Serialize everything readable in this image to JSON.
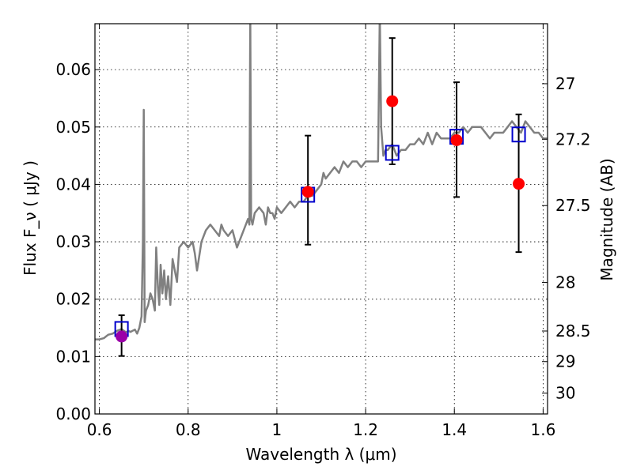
{
  "chart_data": {
    "type": "scatter",
    "title": "",
    "xlabel": "Wavelength  λ (μm)",
    "ylabel": "Flux  F_ν  ( μJy )",
    "ylabel_right": "Magnitude (AB)",
    "xlim": [
      0.59,
      1.61
    ],
    "ylim": [
      0.0,
      0.068
    ],
    "x_ticks": [
      0.6,
      0.8,
      1.0,
      1.2,
      1.4,
      1.6
    ],
    "x_tick_labels": [
      "0.6",
      "0.8",
      "1",
      "1.2",
      "1.4",
      "1.6"
    ],
    "y_ticks": [
      0.0,
      0.01,
      0.02,
      0.03,
      0.04,
      0.05,
      0.06
    ],
    "y_tick_labels": [
      "0.00",
      "0.01",
      "0.02",
      "0.03",
      "0.04",
      "0.05",
      "0.06"
    ],
    "right_ticks": [
      27,
      27.2,
      27.5,
      28,
      28.5,
      29,
      30
    ],
    "right_tick_labels": [
      "27",
      "27.2",
      "27.5",
      "28",
      "28.5",
      "29",
      "30"
    ],
    "grid": true,
    "colors": {
      "sed": "#808080",
      "observed": "#ff0000",
      "model": "#0000cc",
      "overlap": "#9b00a8",
      "errorbar": "#000000"
    },
    "series": [
      {
        "kind": "sed_line",
        "x": [
          0.59,
          0.6,
          0.61,
          0.615,
          0.62,
          0.63,
          0.64,
          0.65,
          0.66,
          0.665,
          0.67,
          0.68,
          0.685,
          0.69,
          0.695,
          0.698,
          0.7,
          0.702,
          0.705,
          0.71,
          0.715,
          0.72,
          0.725,
          0.728,
          0.732,
          0.735,
          0.738,
          0.742,
          0.746,
          0.75,
          0.755,
          0.76,
          0.765,
          0.775,
          0.78,
          0.79,
          0.8,
          0.81,
          0.815,
          0.82,
          0.83,
          0.84,
          0.85,
          0.86,
          0.87,
          0.875,
          0.88,
          0.89,
          0.9,
          0.91,
          0.92,
          0.93,
          0.935,
          0.938,
          0.94,
          0.942,
          0.945,
          0.95,
          0.96,
          0.97,
          0.975,
          0.98,
          0.985,
          0.99,
          0.995,
          1.0,
          1.01,
          1.02,
          1.03,
          1.04,
          1.05,
          1.06,
          1.07,
          1.08,
          1.09,
          1.1,
          1.105,
          1.11,
          1.12,
          1.13,
          1.14,
          1.15,
          1.16,
          1.17,
          1.18,
          1.19,
          1.2,
          1.21,
          1.22,
          1.228,
          1.232,
          1.235,
          1.24,
          1.245,
          1.25,
          1.26,
          1.27,
          1.28,
          1.29,
          1.3,
          1.31,
          1.32,
          1.33,
          1.34,
          1.35,
          1.36,
          1.37,
          1.38,
          1.39,
          1.4,
          1.41,
          1.42,
          1.43,
          1.44,
          1.45,
          1.46,
          1.47,
          1.48,
          1.49,
          1.5,
          1.51,
          1.52,
          1.53,
          1.54,
          1.55,
          1.56,
          1.57,
          1.58,
          1.59,
          1.6,
          1.61
        ],
        "y": [
          0.013,
          0.013,
          0.0132,
          0.0135,
          0.0138,
          0.014,
          0.0145,
          0.0148,
          0.0142,
          0.0145,
          0.0143,
          0.0147,
          0.014,
          0.015,
          0.017,
          0.03,
          0.053,
          0.016,
          0.018,
          0.019,
          0.021,
          0.02,
          0.018,
          0.029,
          0.022,
          0.019,
          0.026,
          0.021,
          0.025,
          0.02,
          0.024,
          0.019,
          0.027,
          0.023,
          0.029,
          0.03,
          0.029,
          0.03,
          0.028,
          0.025,
          0.03,
          0.032,
          0.033,
          0.032,
          0.031,
          0.033,
          0.032,
          0.031,
          0.032,
          0.029,
          0.031,
          0.033,
          0.034,
          0.033,
          0.07,
          0.034,
          0.033,
          0.035,
          0.036,
          0.035,
          0.033,
          0.036,
          0.035,
          0.035,
          0.034,
          0.036,
          0.035,
          0.036,
          0.037,
          0.036,
          0.037,
          0.037,
          0.038,
          0.038,
          0.039,
          0.04,
          0.042,
          0.041,
          0.042,
          0.043,
          0.042,
          0.044,
          0.043,
          0.044,
          0.044,
          0.043,
          0.044,
          0.044,
          0.044,
          0.044,
          0.07,
          0.05,
          0.045,
          0.046,
          0.046,
          0.047,
          0.045,
          0.046,
          0.046,
          0.047,
          0.047,
          0.048,
          0.047,
          0.049,
          0.047,
          0.049,
          0.048,
          0.048,
          0.048,
          0.049,
          0.049,
          0.05,
          0.049,
          0.05,
          0.05,
          0.05,
          0.049,
          0.048,
          0.049,
          0.049,
          0.049,
          0.05,
          0.051,
          0.05,
          0.049,
          0.051,
          0.05,
          0.049,
          0.049,
          0.048,
          0.048
        ]
      },
      {
        "kind": "observed",
        "x": [
          0.65,
          1.07,
          1.26,
          1.405,
          1.545
        ],
        "y": [
          0.0135,
          0.0387,
          0.0545,
          0.0477,
          0.0401
        ]
      },
      {
        "kind": "model",
        "x": [
          0.65,
          1.07,
          1.26,
          1.405,
          1.545
        ],
        "y": [
          0.0148,
          0.0382,
          0.0455,
          0.0483,
          0.0487
        ]
      },
      {
        "kind": "errorbar",
        "x": [
          0.65,
          1.07,
          1.26,
          1.405,
          1.545
        ],
        "ylo": [
          0.0101,
          0.0295,
          0.0435,
          0.0378,
          0.0282
        ],
        "yhi": [
          0.0172,
          0.0485,
          0.0655,
          0.0578,
          0.0522
        ]
      }
    ]
  }
}
